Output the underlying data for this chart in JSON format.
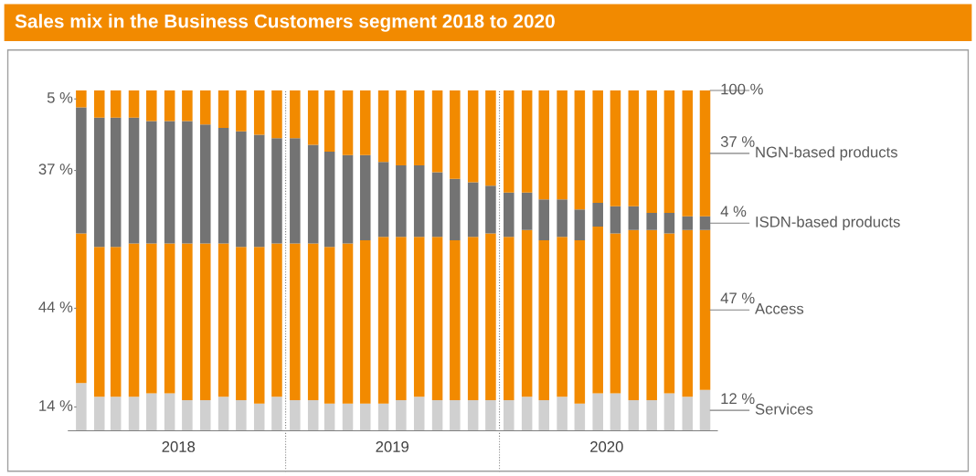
{
  "chart_data": {
    "type": "bar",
    "stacked": true,
    "title": "Sales mix in the Business Customers segment 2018 to 2020",
    "x": [
      "2018-01",
      "2018-02",
      "2018-03",
      "2018-04",
      "2018-05",
      "2018-06",
      "2018-07",
      "2018-08",
      "2018-09",
      "2018-10",
      "2018-11",
      "2018-12",
      "2019-01",
      "2019-02",
      "2019-03",
      "2019-04",
      "2019-05",
      "2019-06",
      "2019-07",
      "2019-08",
      "2019-09",
      "2019-10",
      "2019-11",
      "2019-12",
      "2020-01",
      "2020-02",
      "2020-03",
      "2020-04",
      "2020-05",
      "2020-06",
      "2020-07",
      "2020-08",
      "2020-09",
      "2020-10",
      "2020-11",
      "2020-12"
    ],
    "xlim": [
      "2017-12-10",
      "2020-12-22"
    ],
    "xticks": [
      {
        "value": "2018-06-16",
        "label": "2018"
      },
      {
        "value": "2019-06-16",
        "label": "2019"
      },
      {
        "value": "2020-06-16",
        "label": "2020"
      }
    ],
    "ylim": [
      0,
      100
    ],
    "tick_labels": "x",
    "legend": false,
    "grid": false,
    "series": [
      {
        "name": "Services",
        "color": "#d0d0d0",
        "values": [
          14,
          10,
          10,
          10,
          11,
          11,
          9,
          9,
          10,
          9,
          8,
          10,
          9,
          9,
          8,
          8,
          8,
          8,
          9,
          10,
          9,
          9,
          9,
          9,
          9,
          10,
          9,
          10,
          8,
          11,
          11,
          9,
          9,
          11,
          10,
          12
        ],
        "value_labels": [
          "14 %",
          null,
          null,
          null,
          null,
          null,
          null,
          null,
          null,
          null,
          null,
          null,
          null,
          null,
          null,
          null,
          null,
          null,
          null,
          null,
          null,
          null,
          null,
          null,
          null,
          null,
          null,
          null,
          null,
          null,
          null,
          null,
          null,
          null,
          null,
          "12 %"
        ]
      },
      {
        "name": "Access",
        "color": "#f28a00",
        "values": [
          44,
          44,
          44,
          45,
          44,
          44,
          46,
          46,
          45,
          45,
          46,
          45,
          46,
          46,
          46,
          47,
          48,
          49,
          48,
          47,
          48,
          47,
          48,
          49,
          48,
          49,
          47,
          47,
          48,
          49,
          47,
          50,
          50,
          47,
          49,
          47
        ],
        "value_labels": [
          "44 %",
          null,
          null,
          null,
          null,
          null,
          null,
          null,
          null,
          null,
          null,
          null,
          null,
          null,
          null,
          null,
          null,
          null,
          null,
          null,
          null,
          null,
          null,
          null,
          null,
          null,
          null,
          null,
          null,
          null,
          null,
          null,
          null,
          null,
          null,
          "47 %"
        ]
      },
      {
        "name": "ISDN-based products",
        "color": "#737373",
        "values": [
          37,
          38,
          38,
          37,
          36,
          36,
          36,
          35,
          34,
          34,
          33,
          31,
          31,
          29,
          28,
          26,
          25,
          22,
          21,
          21,
          19,
          18,
          16,
          14,
          13,
          11,
          12,
          11,
          9,
          7,
          8,
          7,
          5,
          6,
          4,
          4
        ],
        "value_labels": [
          "37 %",
          null,
          null,
          null,
          null,
          null,
          null,
          null,
          null,
          null,
          null,
          null,
          null,
          null,
          null,
          null,
          null,
          null,
          null,
          null,
          null,
          null,
          null,
          null,
          null,
          null,
          null,
          null,
          null,
          null,
          null,
          null,
          null,
          null,
          null,
          "4 %"
        ]
      },
      {
        "name": "NGN-based products",
        "color": "#f28a00",
        "values": [
          5,
          8,
          8,
          8,
          9,
          9,
          9,
          10,
          11,
          12,
          13,
          14,
          14,
          16,
          18,
          19,
          19,
          21,
          22,
          22,
          24,
          26,
          27,
          28,
          30,
          30,
          32,
          32,
          35,
          33,
          34,
          34,
          36,
          36,
          37,
          37
        ],
        "value_labels": [
          "5 %",
          null,
          null,
          null,
          null,
          null,
          null,
          null,
          null,
          null,
          null,
          null,
          null,
          null,
          null,
          null,
          null,
          null,
          null,
          null,
          null,
          null,
          null,
          null,
          null,
          null,
          null,
          null,
          null,
          null,
          null,
          null,
          null,
          null,
          null,
          "37 %"
        ]
      }
    ],
    "ref_lines": [
      {
        "axis": "x",
        "value": "2018-12-16",
        "color": "#808080",
        "line_style": "dotted"
      },
      {
        "axis": "x",
        "value": "2019-12-16",
        "color": "#808080",
        "line_style": "dotted"
      }
    ],
    "annotations": [
      {
        "text": "100 %",
        "x": "2020-12",
        "y": 100
      }
    ]
  }
}
